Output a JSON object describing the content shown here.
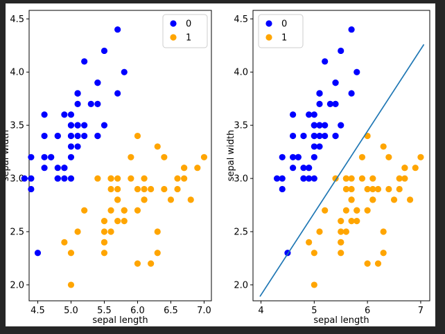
{
  "window": {
    "frame_color": "#262626",
    "figure_background": "#ffffff"
  },
  "chart_data": [
    {
      "type": "scatter",
      "title": "",
      "xlabel": "sepal length",
      "ylabel": "sepal width",
      "xlim": [
        4.37,
        7.11
      ],
      "ylim": [
        1.85,
        4.58
      ],
      "xticks": [
        4.5,
        5.0,
        5.5,
        6.0,
        6.5,
        7.0
      ],
      "xtick_labels": [
        "4.5",
        "5.0",
        "5.5",
        "6.0",
        "6.5",
        "7.0"
      ],
      "yticks": [
        2.0,
        2.5,
        3.0,
        3.5,
        4.0,
        4.5
      ],
      "ytick_labels": [
        "2.0",
        "2.5",
        "3.0",
        "3.5",
        "4.0",
        "4.5"
      ],
      "grid": false,
      "legend": {
        "position": "upper-right",
        "entries": [
          {
            "label": "0",
            "color": "#0000ff"
          },
          {
            "label": "1",
            "color": "#ffa500"
          }
        ]
      },
      "series": [
        {
          "name": "0",
          "color": "#0000ff",
          "points": [
            [
              5.1,
              3.5
            ],
            [
              4.9,
              3.0
            ],
            [
              4.7,
              3.2
            ],
            [
              4.6,
              3.1
            ],
            [
              5.0,
              3.6
            ],
            [
              5.4,
              3.9
            ],
            [
              4.6,
              3.4
            ],
            [
              5.0,
              3.4
            ],
            [
              4.4,
              2.9
            ],
            [
              4.9,
              3.1
            ],
            [
              5.4,
              3.7
            ],
            [
              4.8,
              3.4
            ],
            [
              4.8,
              3.0
            ],
            [
              4.3,
              3.0
            ],
            [
              5.8,
              4.0
            ],
            [
              5.7,
              4.4
            ],
            [
              5.4,
              3.9
            ],
            [
              5.1,
              3.5
            ],
            [
              5.7,
              3.8
            ],
            [
              5.1,
              3.8
            ],
            [
              5.4,
              3.4
            ],
            [
              5.1,
              3.7
            ],
            [
              4.6,
              3.6
            ],
            [
              5.1,
              3.3
            ],
            [
              4.8,
              3.4
            ],
            [
              5.0,
              3.0
            ],
            [
              5.0,
              3.4
            ],
            [
              5.2,
              3.5
            ],
            [
              5.2,
              3.4
            ],
            [
              4.7,
              3.2
            ],
            [
              4.8,
              3.1
            ],
            [
              5.4,
              3.4
            ],
            [
              5.2,
              4.1
            ],
            [
              5.5,
              4.2
            ],
            [
              4.9,
              3.1
            ],
            [
              5.0,
              3.2
            ],
            [
              5.5,
              3.5
            ],
            [
              4.9,
              3.6
            ],
            [
              4.4,
              3.0
            ],
            [
              5.1,
              3.4
            ],
            [
              5.0,
              3.5
            ],
            [
              4.5,
              2.3
            ],
            [
              4.4,
              3.2
            ],
            [
              5.0,
              3.5
            ],
            [
              5.1,
              3.8
            ],
            [
              4.8,
              3.0
            ],
            [
              5.1,
              3.8
            ],
            [
              4.6,
              3.2
            ],
            [
              5.3,
              3.7
            ],
            [
              5.0,
              3.3
            ]
          ]
        },
        {
          "name": "1",
          "color": "#ffa500",
          "points": [
            [
              7.0,
              3.2
            ],
            [
              6.4,
              3.2
            ],
            [
              6.9,
              3.1
            ],
            [
              5.5,
              2.3
            ],
            [
              6.5,
              2.8
            ],
            [
              5.7,
              2.8
            ],
            [
              6.3,
              3.3
            ],
            [
              4.9,
              2.4
            ],
            [
              6.6,
              2.9
            ],
            [
              5.2,
              2.7
            ],
            [
              5.0,
              2.0
            ],
            [
              5.9,
              3.0
            ],
            [
              6.0,
              2.2
            ],
            [
              6.1,
              2.9
            ],
            [
              5.6,
              2.9
            ],
            [
              6.7,
              3.1
            ],
            [
              5.6,
              3.0
            ],
            [
              5.8,
              2.7
            ],
            [
              6.2,
              2.2
            ],
            [
              5.6,
              2.5
            ],
            [
              5.9,
              3.2
            ],
            [
              6.1,
              2.8
            ],
            [
              6.3,
              2.5
            ],
            [
              6.1,
              2.8
            ],
            [
              6.4,
              2.9
            ],
            [
              6.6,
              3.0
            ],
            [
              6.8,
              2.8
            ],
            [
              6.7,
              3.0
            ],
            [
              6.0,
              2.9
            ],
            [
              5.7,
              2.6
            ],
            [
              5.5,
              2.4
            ],
            [
              5.5,
              2.4
            ],
            [
              5.8,
              2.7
            ],
            [
              6.0,
              2.7
            ],
            [
              5.4,
              3.0
            ],
            [
              6.0,
              3.4
            ],
            [
              6.7,
              3.1
            ],
            [
              6.3,
              2.3
            ],
            [
              5.6,
              3.0
            ],
            [
              5.5,
              2.5
            ],
            [
              5.5,
              2.6
            ],
            [
              6.1,
              3.0
            ],
            [
              5.8,
              2.6
            ],
            [
              5.0,
              2.3
            ],
            [
              5.6,
              2.7
            ],
            [
              5.7,
              3.0
            ],
            [
              5.7,
              2.9
            ],
            [
              6.2,
              2.9
            ],
            [
              5.1,
              2.5
            ],
            [
              5.7,
              2.8
            ]
          ]
        }
      ]
    },
    {
      "type": "scatter",
      "title": "",
      "xlabel": "sepal length",
      "ylabel": "sepal width",
      "xlim": [
        3.85,
        7.17
      ],
      "ylim": [
        1.85,
        4.58
      ],
      "xticks": [
        4,
        5,
        6,
        7
      ],
      "xtick_labels": [
        "4",
        "5",
        "6",
        "7"
      ],
      "yticks": [
        2.0,
        2.5,
        3.0,
        3.5,
        4.0,
        4.5
      ],
      "ytick_labels": [
        "2.0",
        "2.5",
        "3.0",
        "3.5",
        "4.0",
        "4.5"
      ],
      "grid": false,
      "legend": {
        "position": "upper-left",
        "entries": [
          {
            "label": "0",
            "color": "#0000ff"
          },
          {
            "label": "1",
            "color": "#ffa500"
          }
        ]
      },
      "line": {
        "name": "decision-boundary",
        "color": "#1f77b4",
        "points": [
          [
            3.98,
            1.89
          ],
          [
            7.06,
            4.26
          ]
        ]
      },
      "series": [
        {
          "name": "0",
          "color": "#0000ff",
          "points": [
            [
              5.1,
              3.5
            ],
            [
              4.9,
              3.0
            ],
            [
              4.7,
              3.2
            ],
            [
              4.6,
              3.1
            ],
            [
              5.0,
              3.6
            ],
            [
              5.4,
              3.9
            ],
            [
              4.6,
              3.4
            ],
            [
              5.0,
              3.4
            ],
            [
              4.4,
              2.9
            ],
            [
              4.9,
              3.1
            ],
            [
              5.4,
              3.7
            ],
            [
              4.8,
              3.4
            ],
            [
              4.8,
              3.0
            ],
            [
              4.3,
              3.0
            ],
            [
              5.8,
              4.0
            ],
            [
              5.7,
              4.4
            ],
            [
              5.4,
              3.9
            ],
            [
              5.1,
              3.5
            ],
            [
              5.7,
              3.8
            ],
            [
              5.1,
              3.8
            ],
            [
              5.4,
              3.4
            ],
            [
              5.1,
              3.7
            ],
            [
              4.6,
              3.6
            ],
            [
              5.1,
              3.3
            ],
            [
              4.8,
              3.4
            ],
            [
              5.0,
              3.0
            ],
            [
              5.0,
              3.4
            ],
            [
              5.2,
              3.5
            ],
            [
              5.2,
              3.4
            ],
            [
              4.7,
              3.2
            ],
            [
              4.8,
              3.1
            ],
            [
              5.4,
              3.4
            ],
            [
              5.2,
              4.1
            ],
            [
              5.5,
              4.2
            ],
            [
              4.9,
              3.1
            ],
            [
              5.0,
              3.2
            ],
            [
              5.5,
              3.5
            ],
            [
              4.9,
              3.6
            ],
            [
              4.4,
              3.0
            ],
            [
              5.1,
              3.4
            ],
            [
              5.0,
              3.5
            ],
            [
              4.5,
              2.3
            ],
            [
              4.4,
              3.2
            ],
            [
              5.0,
              3.5
            ],
            [
              5.1,
              3.8
            ],
            [
              4.8,
              3.0
            ],
            [
              5.1,
              3.8
            ],
            [
              4.6,
              3.2
            ],
            [
              5.3,
              3.7
            ],
            [
              5.0,
              3.3
            ]
          ]
        },
        {
          "name": "1",
          "color": "#ffa500",
          "points": [
            [
              7.0,
              3.2
            ],
            [
              6.4,
              3.2
            ],
            [
              6.9,
              3.1
            ],
            [
              5.5,
              2.3
            ],
            [
              6.5,
              2.8
            ],
            [
              5.7,
              2.8
            ],
            [
              6.3,
              3.3
            ],
            [
              4.9,
              2.4
            ],
            [
              6.6,
              2.9
            ],
            [
              5.2,
              2.7
            ],
            [
              5.0,
              2.0
            ],
            [
              5.9,
              3.0
            ],
            [
              6.0,
              2.2
            ],
            [
              6.1,
              2.9
            ],
            [
              5.6,
              2.9
            ],
            [
              6.7,
              3.1
            ],
            [
              5.6,
              3.0
            ],
            [
              5.8,
              2.7
            ],
            [
              6.2,
              2.2
            ],
            [
              5.6,
              2.5
            ],
            [
              5.9,
              3.2
            ],
            [
              6.1,
              2.8
            ],
            [
              6.3,
              2.5
            ],
            [
              6.1,
              2.8
            ],
            [
              6.4,
              2.9
            ],
            [
              6.6,
              3.0
            ],
            [
              6.8,
              2.8
            ],
            [
              6.7,
              3.0
            ],
            [
              6.0,
              2.9
            ],
            [
              5.7,
              2.6
            ],
            [
              5.5,
              2.4
            ],
            [
              5.5,
              2.4
            ],
            [
              5.8,
              2.7
            ],
            [
              6.0,
              2.7
            ],
            [
              5.4,
              3.0
            ],
            [
              6.0,
              3.4
            ],
            [
              6.7,
              3.1
            ],
            [
              6.3,
              2.3
            ],
            [
              5.6,
              3.0
            ],
            [
              5.5,
              2.5
            ],
            [
              5.5,
              2.6
            ],
            [
              6.1,
              3.0
            ],
            [
              5.8,
              2.6
            ],
            [
              5.0,
              2.3
            ],
            [
              5.6,
              2.7
            ],
            [
              5.7,
              3.0
            ],
            [
              5.7,
              2.9
            ],
            [
              6.2,
              2.9
            ],
            [
              5.1,
              2.5
            ],
            [
              5.7,
              2.8
            ]
          ]
        }
      ]
    }
  ]
}
